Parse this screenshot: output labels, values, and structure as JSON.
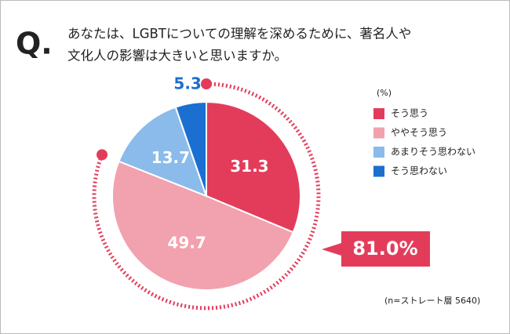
{
  "chart_data": {
    "type": "pie",
    "question_label": "Q.",
    "title": [
      "あなたは、LGBTについての理解を深めるために、著名人や",
      "文化人の影響は大きいと思いますか。"
    ],
    "categories": [
      "そう思う",
      "ややそう思う",
      "あまりそう思わない",
      "そう思わない"
    ],
    "values": [
      31.3,
      49.7,
      13.7,
      5.3
    ],
    "colors": [
      "#e33c5b",
      "#f2a1ae",
      "#8bbbea",
      "#1b6fd0"
    ],
    "legend_title": "(%)",
    "annotation": "81.0%",
    "note": "(n=ストレート層 5640)"
  }
}
